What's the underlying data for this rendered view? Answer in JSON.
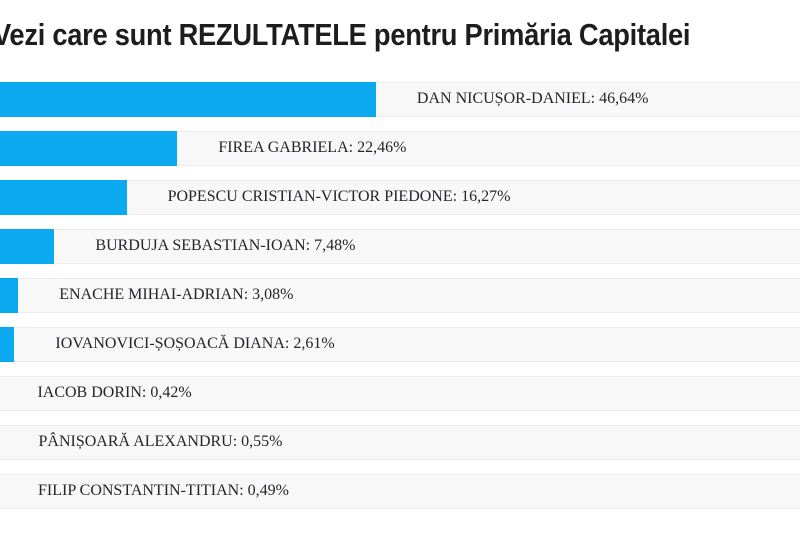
{
  "page": {
    "title": "Vezi care sunt REZULTATELE pentru Primăria Capitalei"
  },
  "chart_data": {
    "type": "bar",
    "orientation": "horizontal",
    "title": "Vezi care sunt REZULTATELE pentru Primăria Capitalei",
    "categories": [
      "DAN NICUȘOR-DANIEL",
      "FIREA GABRIELA",
      "POPESCU CRISTIAN-VICTOR PIEDONE",
      "BURDUJA SEBASTIAN-IOAN",
      "ENACHE MIHAI-ADRIAN",
      "IOVANOVICI-ȘOȘOACĂ DIANA",
      "IACOB DORIN",
      "PÂNIȘOARĂ ALEXANDRU",
      "FILIP CONSTANTIN-TITIAN"
    ],
    "values": [
      46.64,
      22.46,
      16.27,
      7.48,
      3.08,
      2.61,
      0.42,
      0.55,
      0.49
    ],
    "labels": [
      "DAN NICUȘOR-DANIEL: 46,64%",
      "FIREA GABRIELA: 22,46%",
      "POPESCU CRISTIAN-VICTOR PIEDONE: 16,27%",
      "BURDUJA SEBASTIAN-IOAN: 7,48%",
      "ENACHE MIHAI-ADRIAN: 3,08%",
      "IOVANOVICI-ȘOȘOACĂ DIANA: 2,61%",
      "IACOB DORIN: 0,42%",
      "PÂNIȘOARĂ ALEXANDRU: 0,55%",
      "FILIP CONSTANTIN-TITIAN: 0,49%"
    ],
    "xlabel": "",
    "ylabel": "",
    "xlim": [
      0,
      100
    ],
    "grid": false,
    "legend": false,
    "bar_color": "#0aa9f0",
    "row_background": "#f8f8f8",
    "label_color": "#23252b"
  }
}
